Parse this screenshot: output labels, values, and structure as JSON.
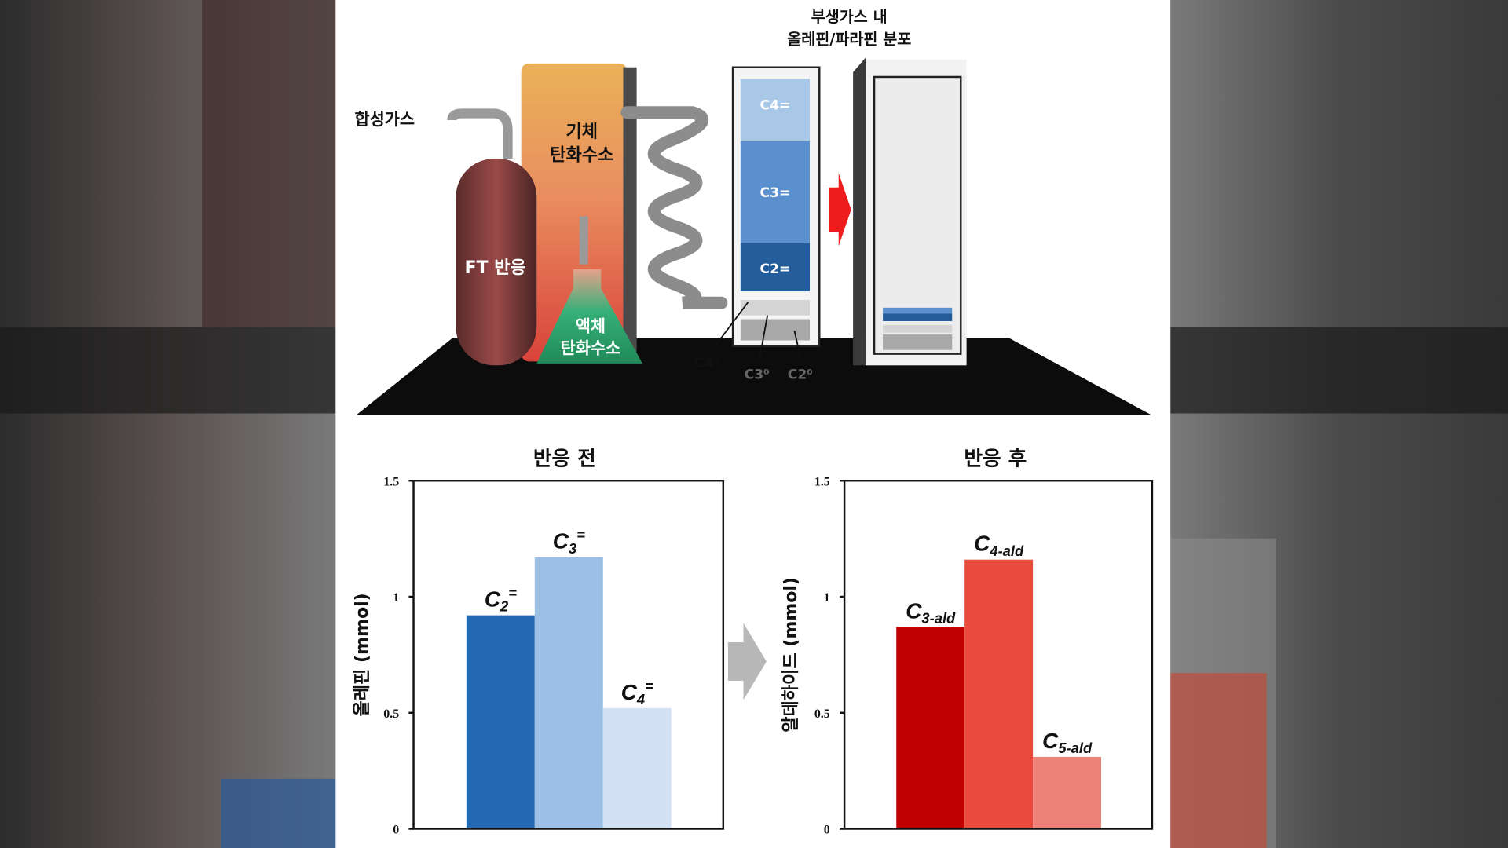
{
  "diagram": {
    "syngas_label": "합성가스",
    "ft_reaction_label": "FT 반응",
    "gas_hc_label": [
      "기체",
      "탄화수소"
    ],
    "liquid_hc_label": [
      "액체",
      "탄화수소"
    ],
    "distribution_title": [
      "부생가스 내",
      "올레핀/파라핀 분포"
    ],
    "olefins": [
      "C4=",
      "C3=",
      "C2="
    ],
    "paraffins": [
      "C4⁰",
      "C3⁰",
      "C2⁰"
    ]
  },
  "chart_data": [
    {
      "type": "bar",
      "title": "반응 전",
      "ylabel": "올레핀 (mmol)",
      "categories": [
        "C2=",
        "C3=",
        "C4="
      ],
      "values": [
        0.92,
        1.17,
        0.52
      ],
      "colors": [
        "#2469b3",
        "#9bbfe6",
        "#d3e1f5"
      ],
      "ylim": [
        0,
        1.5
      ],
      "yticks": [
        "0",
        "0.5",
        "1",
        "1.5"
      ],
      "grid": false
    },
    {
      "type": "bar",
      "title": "반응 후",
      "ylabel": "알데하이드 (mmol)",
      "categories": [
        "C3-ald",
        "C4-ald",
        "C5-ald"
      ],
      "values": [
        0.87,
        1.16,
        0.31
      ],
      "colors": [
        "#c00000",
        "#e84b3c",
        "#ee8279"
      ],
      "ylim": [
        0,
        1.5
      ],
      "yticks": [
        "0",
        "0.5",
        "1",
        "1.5"
      ],
      "grid": false
    }
  ]
}
